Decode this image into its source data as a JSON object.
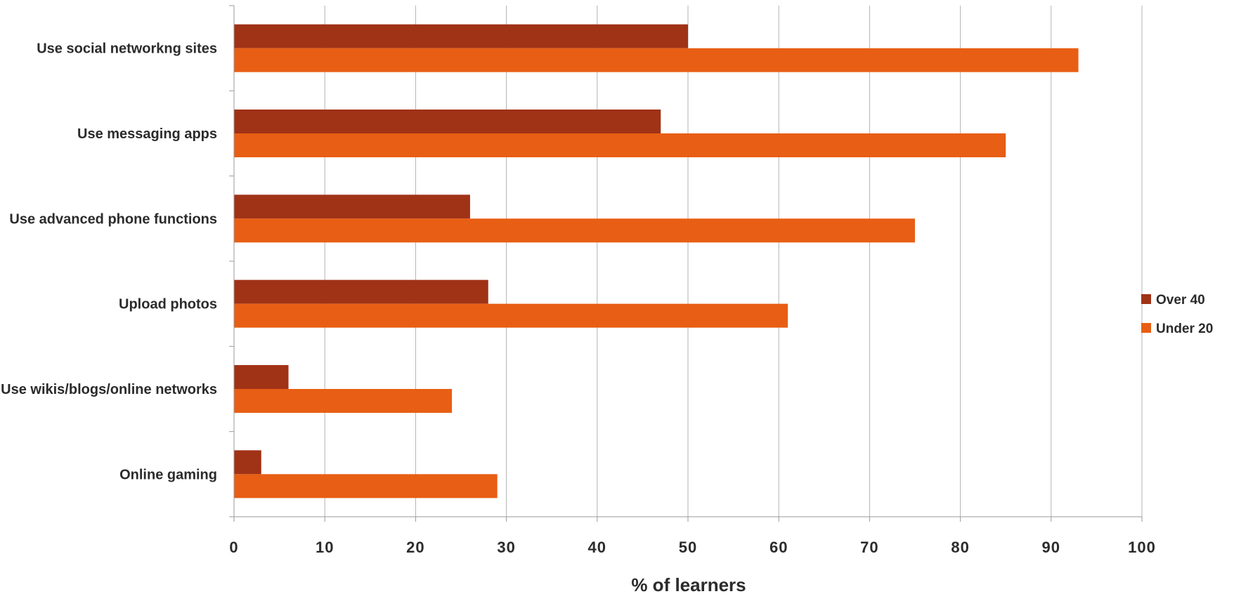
{
  "chart_data": {
    "type": "bar",
    "orientation": "horizontal",
    "title": "",
    "xlabel": "% of learners",
    "ylabel": "",
    "xlim": [
      0,
      100
    ],
    "x_ticks": [
      0,
      10,
      20,
      30,
      40,
      50,
      60,
      70,
      80,
      90,
      100
    ],
    "grid": true,
    "legend_position": "right",
    "categories": [
      "Use social networkng sites",
      "Use messaging apps",
      "Use advanced phone functions",
      "Upload photos",
      "Use wikis/blogs/online networks",
      "Online gaming"
    ],
    "series": [
      {
        "name": "Over 40",
        "color": "#A03216",
        "values": [
          50,
          47,
          26,
          28,
          6,
          3
        ]
      },
      {
        "name": "Under 20",
        "color": "#E85E14",
        "values": [
          93,
          85,
          75,
          61,
          24,
          29
        ]
      }
    ]
  }
}
